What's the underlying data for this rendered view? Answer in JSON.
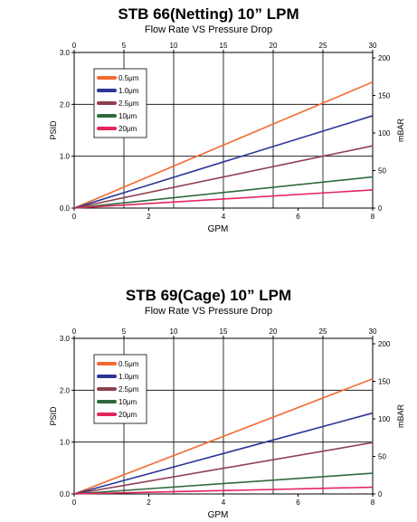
{
  "chart_data": [
    {
      "type": "line",
      "title": "STB 66(Netting)  10”   LPM",
      "subtitle": "Flow Rate VS Pressure Drop",
      "xlabel": "GPM",
      "ylabel": "PSID",
      "y2label": "mBAR",
      "x_ticks": [
        "0",
        "2",
        "4",
        "6",
        "8"
      ],
      "x2_ticks": [
        "0",
        "5",
        "10",
        "15",
        "20",
        "25",
        "30"
      ],
      "y_ticks": [
        "0.0",
        "1.0",
        "2.0",
        "3.0"
      ],
      "y2_ticks": [
        "0",
        "50",
        "100",
        "150",
        "200"
      ],
      "xlim": [
        0,
        8
      ],
      "ylim": [
        0,
        3
      ],
      "grid": true,
      "legend_position": "top-left",
      "series": [
        {
          "name": "0.5μm",
          "color": "#f26a30",
          "x": [
            0,
            8
          ],
          "y": [
            0,
            2.43
          ]
        },
        {
          "name": "1.0μm",
          "color": "#2b3596",
          "x": [
            0,
            8
          ],
          "y": [
            0,
            1.78
          ]
        },
        {
          "name": "2.5μm",
          "color": "#8f3f4f",
          "x": [
            0,
            8
          ],
          "y": [
            0,
            1.2
          ]
        },
        {
          "name": "10μm",
          "color": "#2f6b3c",
          "x": [
            0,
            8
          ],
          "y": [
            0,
            0.6
          ]
        },
        {
          "name": "20μm",
          "color": "#e3245c",
          "x": [
            0,
            8
          ],
          "y": [
            0,
            0.35
          ]
        }
      ]
    },
    {
      "type": "line",
      "title": "STB 69(Cage)  10”   LPM",
      "subtitle": "Flow Rate VS Pressure Drop",
      "xlabel": "GPM",
      "ylabel": "PSID",
      "y2label": "mBAR",
      "x_ticks": [
        "0",
        "2",
        "4",
        "6",
        "8"
      ],
      "x2_ticks": [
        "0",
        "5",
        "10",
        "15",
        "20",
        "25",
        "30"
      ],
      "y_ticks": [
        "0.0",
        "1.0",
        "2.0",
        "3.0"
      ],
      "y2_ticks": [
        "0",
        "50",
        "100",
        "150",
        "200"
      ],
      "xlim": [
        0,
        8
      ],
      "ylim": [
        0,
        3
      ],
      "grid": true,
      "legend_position": "top-left",
      "series": [
        {
          "name": "0.5μm",
          "color": "#f26a30",
          "x": [
            0,
            8
          ],
          "y": [
            0,
            2.22
          ]
        },
        {
          "name": "1.0μm",
          "color": "#2b3596",
          "x": [
            0,
            8
          ],
          "y": [
            0,
            1.56
          ]
        },
        {
          "name": "2.5μm",
          "color": "#8f3f4f",
          "x": [
            0,
            8
          ],
          "y": [
            0,
            0.99
          ]
        },
        {
          "name": "10μm",
          "color": "#2f6b3c",
          "x": [
            0,
            8
          ],
          "y": [
            0,
            0.4
          ]
        },
        {
          "name": "20μm",
          "color": "#e3245c",
          "x": [
            0,
            8
          ],
          "y": [
            0,
            0.13
          ]
        }
      ]
    }
  ]
}
